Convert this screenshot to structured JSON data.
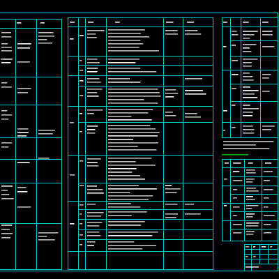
{
  "colors": {
    "background": "#000000",
    "frame_line": "#00d8d8",
    "table_line": "#00cccc",
    "text": "#bdbdbd",
    "text_bright": "#ffffff",
    "title_text": "#00b000"
  }
}
